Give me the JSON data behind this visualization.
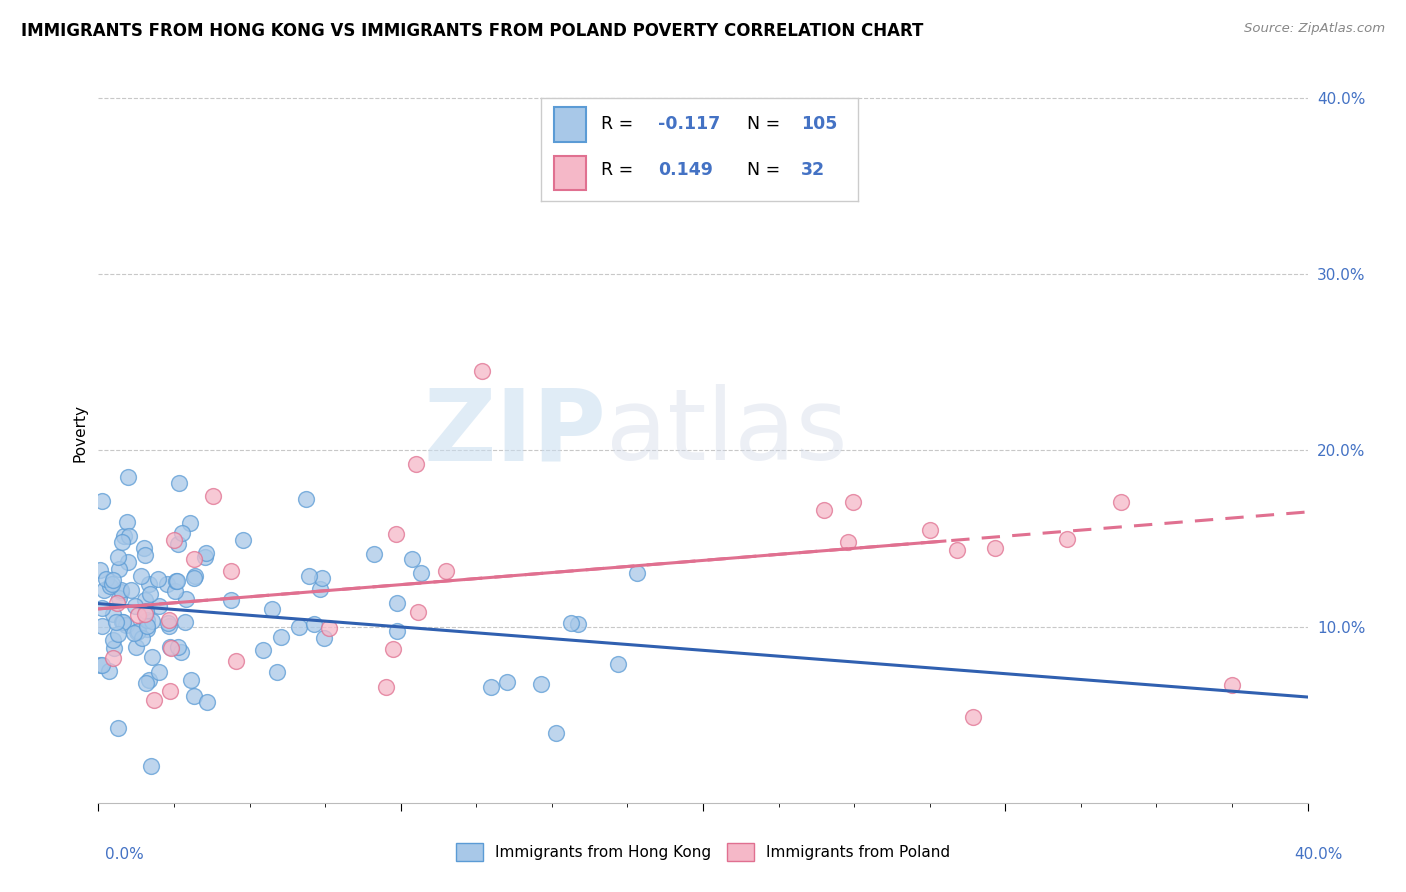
{
  "title": "IMMIGRANTS FROM HONG KONG VS IMMIGRANTS FROM POLAND POVERTY CORRELATION CHART",
  "source": "Source: ZipAtlas.com",
  "ylabel": "Poverty",
  "xlim": [
    0,
    0.4
  ],
  "ylim": [
    0,
    0.42
  ],
  "hk_color": "#a8c8e8",
  "hk_edge_color": "#5b9bd5",
  "poland_color": "#f5b8c8",
  "poland_edge_color": "#e07090",
  "hk_line_color": "#3060b0",
  "poland_line_color": "#e07090",
  "hk_R": -0.117,
  "hk_N": 105,
  "poland_R": 0.149,
  "poland_N": 32,
  "watermark_zip": "ZIP",
  "watermark_atlas": "atlas",
  "legend_label_hk": "Immigrants from Hong Kong",
  "legend_label_poland": "Immigrants from Poland",
  "tick_color": "#4472c4",
  "grid_color": "#c8c8c8",
  "hk_line_start_y": 0.113,
  "hk_line_end_y": 0.06,
  "poland_line_start_y": 0.11,
  "poland_line_end_y": 0.165
}
